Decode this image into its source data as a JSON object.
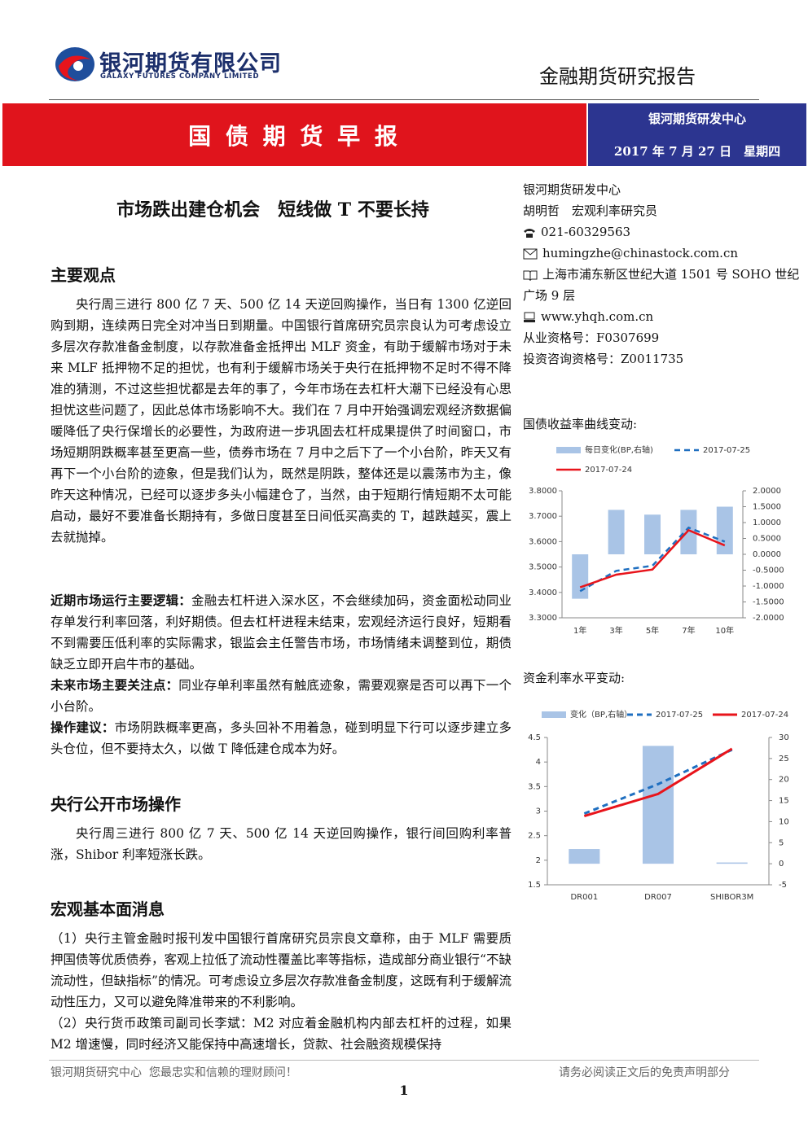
{
  "header": {
    "logo_cn": "银河期货有限公司",
    "logo_en": "GALAXY FUTURES COMPANY LIMITED",
    "report_type": "金融期货研究报告",
    "banner": "国 债 期 货 早 报",
    "center": "银河期货研发中心",
    "date": "2017 年 7 月 27 日　星期四"
  },
  "headline": "市场跌出建仓机会　短线做 T 不要长持",
  "contact": {
    "org": "银河期货研发中心",
    "author": "胡明哲　宏观利率研究员",
    "phone": "021-60329563",
    "email": "humingzhe@chinastock.com.cn",
    "address": "上海市浦东新区世纪大道 1501 号 SOHO 世纪广场 9 层",
    "website": "www.yhqh.com.cn",
    "license": "从业资格号：F0307699",
    "advisory_license": "投资咨询资格号：Z0011735"
  },
  "sections": [
    {
      "heading": "主要观点",
      "paragraph": "央行周三进行 800 亿 7 天、500 亿 14 天逆回购操作，当日有 1300 亿逆回购到期，连续两日完全对冲当日到期量。中国银行首席研究员宗良认为可考虑设立多层次存款准备金制度，以存款准备金抵押出 MLF 资金，有助于缓解市场对于未来 MLF 抵押物不足的担忧，也有利于缓解市场关于央行在抵押物不足时不得不降准的猜测，不过这些担忧都是去年的事了，今年市场在去杠杆大潮下已经没有心思担忧这些问题了，因此总体市场影响不大。我们在 7 月中开始强调宏观经济数据偏暖降低了央行保增长的必要性，为政府进一步巩固去杠杆成果提供了时间窗口，市场短期阴跌概率甚至更高一些，债券市场在 7 月中之后下了一个小台阶，昨天又有再下一个小台阶的迹象，但是我们认为，既然是阴跌，整体还是以震荡市为主，像昨天这种情况，已经可以逐步多头小幅建仓了，当然，由于短期行情短期不太可能启动，最好不要准备长期持有，多做日度甚至日间低买高卖的 T，越跌越买，震上去就抛掉。",
      "points": [
        {
          "label": "近期市场运行主要逻辑：",
          "text": "金融去杠杆进入深水区，不会继续加码，资金面松动同业存单发行利率回落，利好期债。但去杠杆进程未结束，宏观经济运行良好，短期看不到需要压低利率的实际需求，银监会主任警告市场，市场情绪未调整到位，期债缺乏立即开启牛市的基础。"
        },
        {
          "label": "未来市场主要关注点：",
          "text": "同业存单利率虽然有触底迹象，需要观察是否可以再下一个小台阶。"
        },
        {
          "label": "操作建议：",
          "text": "市场阴跌概率更高，多头回补不用着急，碰到明显下行可以逐步建立多头仓位，但不要持太久，以做 T 降低建仓成本为好。"
        }
      ]
    },
    {
      "heading": "央行公开市场操作",
      "paragraph": "央行周三进行 800 亿 7 天、500 亿 14 天逆回购操作，银行间回购利率普涨，Shibor 利率短涨长跌。"
    },
    {
      "heading": "宏观基本面消息",
      "paragraphs": [
        "（1）央行主管金融时报刊发中国银行首席研究员宗良文章称，由于 MLF 需要质押国债等优质债券，客观上拉低了流动性覆盖比率等指标，造成部分商业银行“不缺流动性，但缺指标”的情况。可考虑设立多层次存款准备金制度，这既有利于缓解流动性压力，又可以避免降准带来的不利影响。",
        "（2）央行货币政策司副司长李斌：M2 对应着金融机构内部去杠杆的过程，如果 M2 增速慢，同时经济又能保持中高速增长，贷款、社会融资规模保持"
      ]
    }
  ],
  "footer": {
    "left": "银河期货研究中心  您最忠实和信赖的理财顾问！",
    "right": "请务必阅读正文后的免责声明部分",
    "page": "1"
  },
  "chart_data": [
    {
      "type": "combo",
      "title": "国债收益率曲线变动:",
      "categories": [
        "1年",
        "3年",
        "5年",
        "7年",
        "10年"
      ],
      "series": [
        {
          "name": "每日变化(BP,右轴)",
          "type": "bar",
          "axis": "y2",
          "color": "#a9c4e6",
          "values": [
            -1.4,
            1.4,
            1.25,
            1.4,
            1.5
          ]
        },
        {
          "name": "2017-07-25",
          "type": "line",
          "dashed": true,
          "color": "#1f6fc0",
          "values": [
            3.405,
            3.485,
            3.505,
            3.655,
            3.6
          ]
        },
        {
          "name": "2017-07-24",
          "type": "line",
          "dashed": false,
          "color": "#e8141b",
          "values": [
            3.42,
            3.47,
            3.49,
            3.645,
            3.585
          ]
        }
      ],
      "ylim": [
        3.3,
        3.8
      ],
      "yticks": [
        {
          "value": 3.3,
          "label": "3.3000"
        },
        {
          "value": 3.4,
          "label": "3.4000"
        },
        {
          "value": 3.5,
          "label": "3.5000"
        },
        {
          "value": 3.6,
          "label": "3.6000"
        },
        {
          "value": 3.7,
          "label": "3.7000"
        },
        {
          "value": 3.8,
          "label": "3.8000"
        }
      ],
      "y2lim": [
        -2,
        2
      ],
      "y2ticks": [
        {
          "value": -2,
          "label": "-2.0000"
        },
        {
          "value": -1.5,
          "label": "-1.5000"
        },
        {
          "value": -1,
          "label": "-1.0000"
        },
        {
          "value": -0.5,
          "label": "-0.5000"
        },
        {
          "value": 0,
          "label": "0.0000"
        },
        {
          "value": 0.5,
          "label": "0.5000"
        },
        {
          "value": 1,
          "label": "1.0000"
        },
        {
          "value": 1.5,
          "label": "1.5000"
        },
        {
          "value": 2,
          "label": "2.0000"
        }
      ],
      "grid": false,
      "legend": "top"
    },
    {
      "type": "combo",
      "title": "资金利率水平变动:",
      "categories": [
        "DR001",
        "DR007",
        "SHIBOR3M"
      ],
      "series": [
        {
          "name": "变化（BP,右轴）",
          "type": "bar",
          "axis": "y2",
          "color": "#a9c4e6",
          "values": [
            3.5,
            28,
            0.3
          ]
        },
        {
          "name": "2017-07-25",
          "type": "line",
          "dashed": true,
          "color": "#1f6fc0",
          "values": [
            2.95,
            3.55,
            4.25
          ]
        },
        {
          "name": "2017-07-24",
          "type": "line",
          "dashed": false,
          "color": "#e8141b",
          "values": [
            2.9,
            3.35,
            4.27
          ]
        }
      ],
      "ylim": [
        1.5,
        4.5
      ],
      "yticks": [
        1.5,
        2,
        2.5,
        3,
        3.5,
        4,
        4.5
      ],
      "y2lim": [
        -5,
        30
      ],
      "y2ticks": [
        -5,
        0,
        5,
        10,
        15,
        20,
        25,
        30
      ],
      "grid": false,
      "legend": "top"
    }
  ]
}
